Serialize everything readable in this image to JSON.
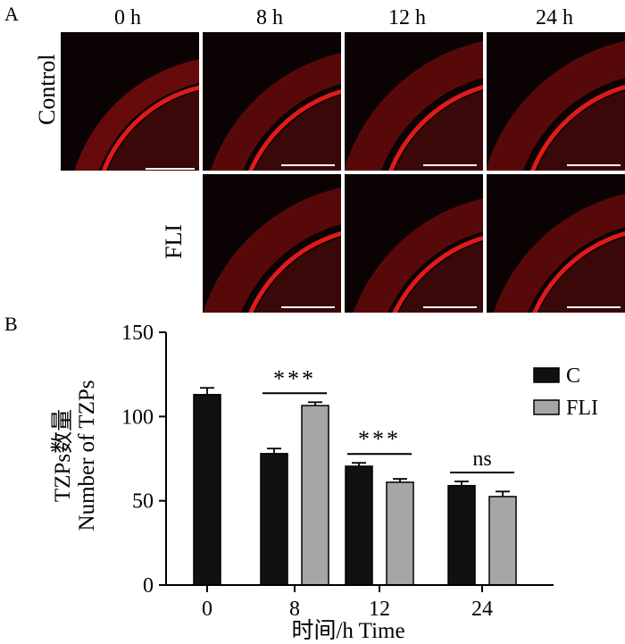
{
  "panel_a": {
    "letter": "A",
    "times": [
      "0 h",
      "8 h",
      "12 h",
      "24 h"
    ],
    "rows": [
      "Control",
      "FLI"
    ]
  },
  "panel_b": {
    "letter": "B"
  },
  "chart_data": {
    "type": "bar",
    "categories": [
      "0",
      "8",
      "12",
      "24"
    ],
    "series": [
      {
        "name": "C",
        "values": [
          113,
          78,
          70.5,
          59
        ],
        "errors": [
          4,
          3,
          2,
          2.5
        ],
        "color": "#111111"
      },
      {
        "name": "FLI",
        "values": [
          null,
          106.5,
          61,
          52.5
        ],
        "errors": [
          null,
          2,
          2,
          3
        ],
        "color": "#a6a6a6"
      }
    ],
    "significance": [
      "",
      "***",
      "***",
      "ns"
    ],
    "ylim": [
      0,
      150
    ],
    "yticks": [
      0,
      50,
      100,
      150
    ],
    "ylabel_cn": "TZPs数量",
    "ylabel_en": "Number of TZPs",
    "xlabel": "时间/h  Time",
    "legend_position": "right",
    "grid": false
  }
}
